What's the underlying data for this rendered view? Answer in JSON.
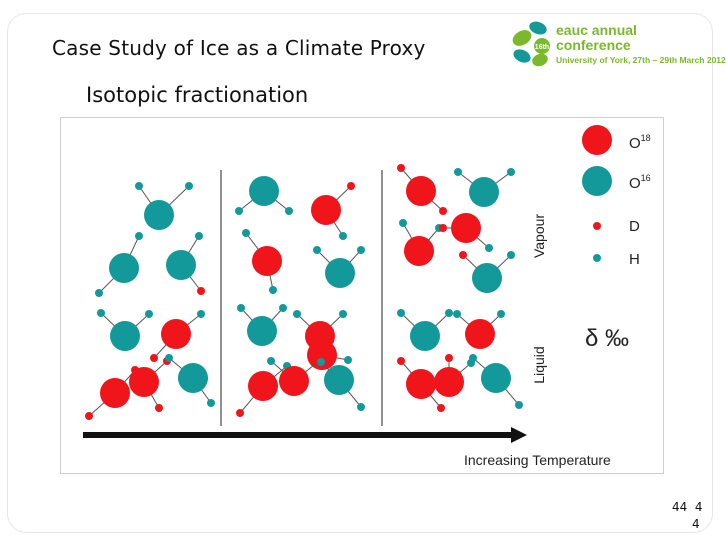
{
  "slide": {
    "title": "Case Study of Ice as a Climate Proxy",
    "subtitle": "Isotopic fractionation",
    "page_number": "44",
    "page_number_right": "4",
    "page_number_bottom": "4"
  },
  "logo": {
    "badge": "16th",
    "line1": "eauc annual",
    "line2": "conference",
    "line3": "University of York, 27th – 29th March 2012"
  },
  "figure": {
    "legend": [
      {
        "symbol": "large-red",
        "label": "O18"
      },
      {
        "symbol": "large-teal",
        "label": "O16"
      },
      {
        "symbol": "small-red",
        "label": "D"
      },
      {
        "symbol": "small-teal",
        "label": "H"
      }
    ],
    "legend_o18_base": "O",
    "legend_o18_sup": "18",
    "legend_o16_base": "O",
    "legend_o16_sup": "16",
    "legend_d": "D",
    "legend_h": "H",
    "vapour_label": "Vapour",
    "liquid_label": "Liquid",
    "delta_label": "δ ‰",
    "axis_label": "Increasing Temperature",
    "colors": {
      "red": "#f0151a",
      "teal": "#13999a",
      "bond": "#555555"
    }
  }
}
